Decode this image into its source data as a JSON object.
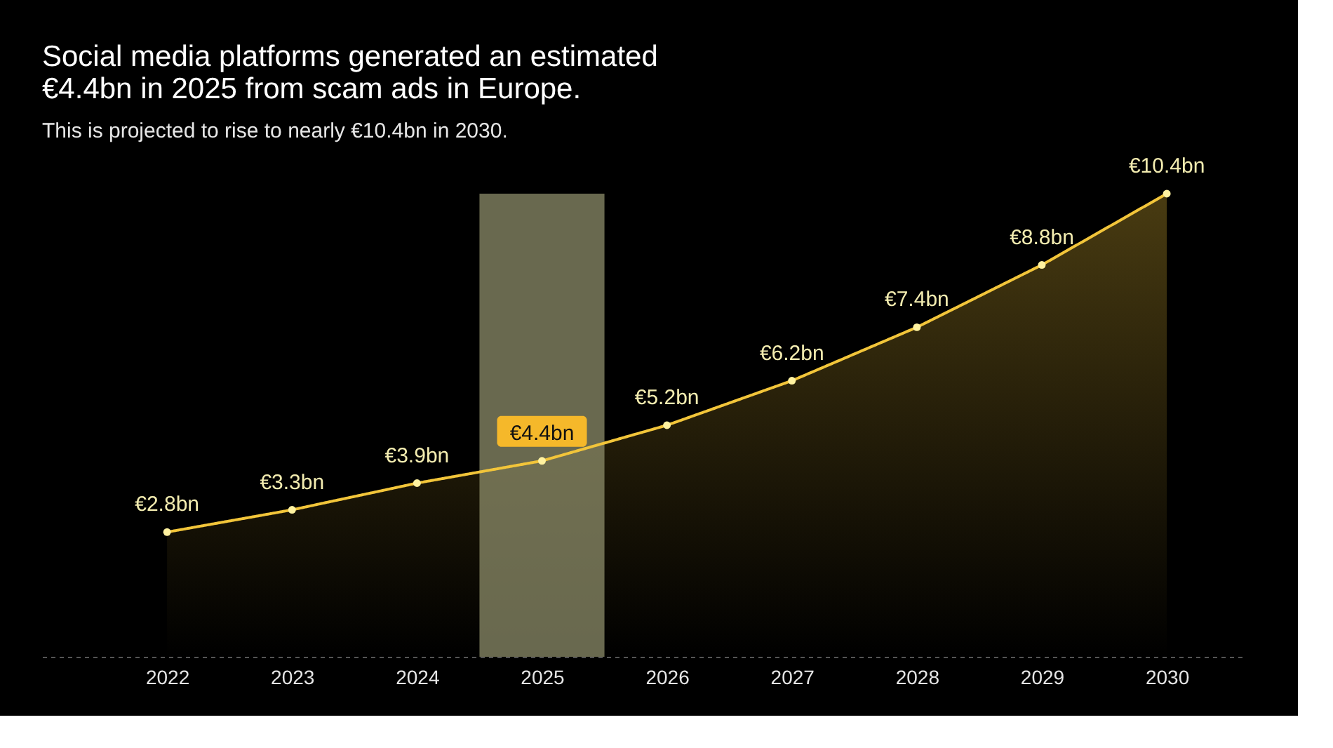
{
  "chart_data": {
    "type": "area",
    "title": [
      "Social media platforms generated an estimated",
      "€4.4bn in 2025 from scam ads in Europe."
    ],
    "subtitle": "This is projected to rise to nearly €10.4bn in 2030.",
    "x": [
      2022,
      2023,
      2024,
      2025,
      2026,
      2027,
      2028,
      2029,
      2030
    ],
    "series": [
      {
        "color": "#f2c53a",
        "values": [
          2.8,
          3.3,
          3.9,
          4.4,
          5.2,
          6.2,
          7.4,
          8.8,
          10.4
        ],
        "value_labels": [
          "€2.8bn",
          "€3.3bn",
          "€3.9bn",
          "€4.4bn",
          "€5.2bn",
          "€6.2bn",
          "€7.4bn",
          "€8.8bn",
          "€10.4bn"
        ]
      }
    ],
    "xlim": [
      2021,
      2030.6
    ],
    "xticks": [
      2022,
      2023,
      2024,
      2025,
      2026,
      2027,
      2028,
      2029,
      2030
    ],
    "bands": [
      {
        "axis": "x",
        "from": 2024.5,
        "to": 2025.5,
        "color": "#8c8c6a"
      }
    ],
    "grid": false,
    "marker": "circle",
    "line_style": "solid"
  }
}
